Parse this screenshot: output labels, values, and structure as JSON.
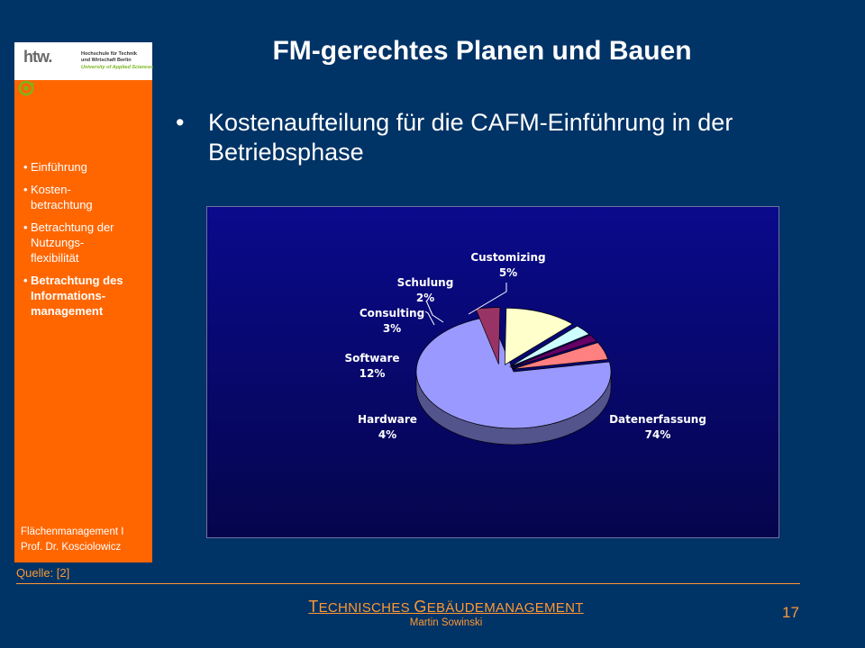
{
  "title": "FM-gerechtes Planen und Bauen",
  "bullet": {
    "symbol": "•",
    "text": "Kostenaufteilung für die CAFM-Einführung in der Betriebsphase"
  },
  "logo": {
    "mark": "htw.",
    "line1": "Hochschule für Technik",
    "line2": "und Wirtschaft Berlin",
    "line3": "University of Applied Sciences",
    "icon": "cycle-icon"
  },
  "sidebar": {
    "items": [
      {
        "label": "Einführung",
        "active": false
      },
      {
        "label": "Kosten-\n  betrachtung",
        "active": false
      },
      {
        "label": "Betrachtung der\n  Nutzungs-\n  flexibilität",
        "active": false
      },
      {
        "label": "Betrachtung des\n  Informations-\n  management",
        "active": true
      }
    ],
    "footer_line1": "Flächenmanagement I",
    "footer_line2": "Prof. Dr. Kosciolowicz"
  },
  "source": "Quelle: [2]",
  "footer": {
    "title_cap1": "T",
    "title_part1": "ECHNISCHES ",
    "title_cap2": "G",
    "title_part2": "EBÄUDEMANAGEMENT",
    "author": "Martin Sowinski"
  },
  "page_number": "17",
  "colors": {
    "background": "#003366",
    "sidebar": "#ff6600",
    "accent": "#ff9933",
    "chart_bg": "#0a0a8c"
  },
  "chart_data": {
    "type": "pie",
    "style": "3d-exploded",
    "slices": [
      {
        "label": "Datenerfassung",
        "value": 74,
        "value_label": "74%",
        "color": "#9999ff"
      },
      {
        "label": "Hardware",
        "value": 4,
        "value_label": "4%",
        "color": "#993366"
      },
      {
        "label": "Software",
        "value": 12,
        "value_label": "12%",
        "color": "#ffffcc"
      },
      {
        "label": "Consulting",
        "value": 3,
        "value_label": "3%",
        "color": "#ccffff"
      },
      {
        "label": "Schulung",
        "value": 2,
        "value_label": "2%",
        "color": "#660066"
      },
      {
        "label": "Customizing",
        "value": 5,
        "value_label": "5%",
        "color": "#ff8080"
      }
    ]
  }
}
